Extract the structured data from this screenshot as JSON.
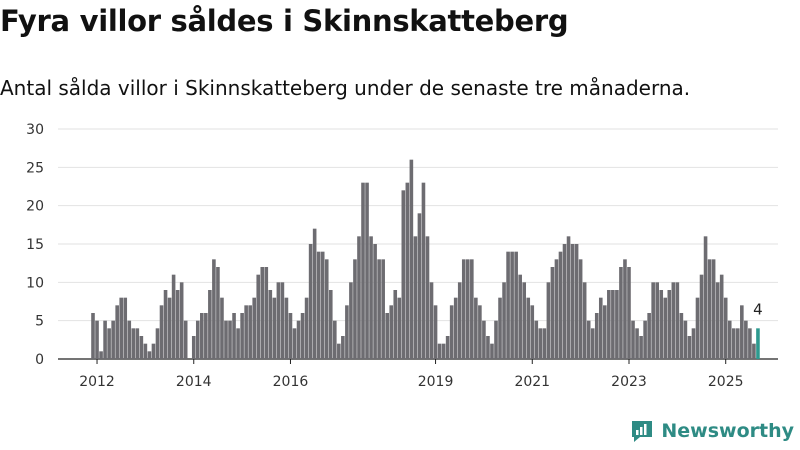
{
  "header": {
    "title": "Fyra villor såldes i Skinnskatteberg",
    "subtitle": "Antal sålda villor i Skinnskatteberg under de senaste tre månaderna."
  },
  "brand": {
    "name": "Newsworthy",
    "color": "#2e8b84",
    "icon": "newsworthy-logo-icon"
  },
  "chart_data": {
    "type": "bar",
    "xlabel": "",
    "ylabel": "",
    "ylim": [
      0,
      30
    ],
    "yticks": [
      0,
      5,
      10,
      15,
      20,
      25,
      30
    ],
    "xticks": [
      {
        "label": "2012",
        "year": 2012
      },
      {
        "label": "2014",
        "year": 2014
      },
      {
        "label": "2016",
        "year": 2016
      },
      {
        "label": "2019",
        "year": 2019
      },
      {
        "label": "2021",
        "year": 2021
      },
      {
        "label": "2023",
        "year": 2023
      },
      {
        "label": "2025",
        "year": 2025
      }
    ],
    "grid": true,
    "bar_color": "#6d6c71",
    "highlight_color": "#2e9a8f",
    "start_month": "2011-12",
    "values": [
      6,
      5,
      1,
      5,
      4,
      5,
      7,
      8,
      8,
      5,
      4,
      4,
      3,
      2,
      1,
      2,
      4,
      7,
      9,
      8,
      11,
      9,
      10,
      5,
      0,
      3,
      5,
      6,
      6,
      9,
      13,
      12,
      8,
      5,
      5,
      6,
      4,
      6,
      7,
      7,
      8,
      11,
      12,
      12,
      9,
      8,
      10,
      10,
      8,
      6,
      4,
      5,
      6,
      8,
      15,
      17,
      14,
      14,
      13,
      9,
      5,
      2,
      3,
      7,
      10,
      13,
      16,
      23,
      23,
      16,
      15,
      13,
      13,
      6,
      7,
      9,
      8,
      22,
      23,
      26,
      16,
      19,
      23,
      16,
      10,
      7,
      2,
      2,
      3,
      7,
      8,
      10,
      13,
      13,
      13,
      8,
      7,
      5,
      3,
      2,
      5,
      8,
      10,
      14,
      14,
      14,
      11,
      10,
      8,
      7,
      5,
      4,
      4,
      10,
      12,
      13,
      14,
      15,
      16,
      15,
      15,
      13,
      10,
      5,
      4,
      6,
      8,
      7,
      9,
      9,
      9,
      12,
      13,
      12,
      5,
      4,
      3,
      5,
      6,
      10,
      10,
      9,
      8,
      9,
      10,
      10,
      6,
      5,
      3,
      4,
      8,
      11,
      16,
      13,
      13,
      10,
      11,
      8,
      5,
      4,
      4,
      7,
      5,
      4,
      2,
      4
    ],
    "annotation": {
      "label": "4",
      "value": 4
    }
  }
}
